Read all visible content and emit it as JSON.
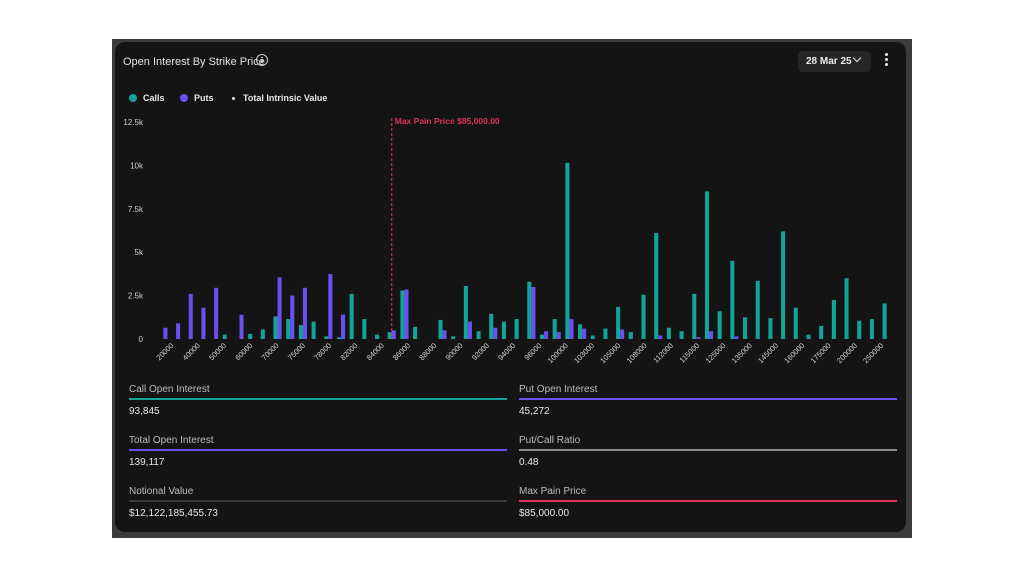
{
  "header": {
    "title": "Open Interest By Strike Price",
    "date_selected": "28 Mar 25"
  },
  "legend": {
    "calls": "Calls",
    "puts": "Puts",
    "intrinsic": "Total Intrinsic Value"
  },
  "colors": {
    "calls": "#12a498",
    "puts": "#6b4ff0",
    "max_pain": "#e0325a",
    "neutral_line": "#8a8a8a",
    "dark_line": "#3a3a3a"
  },
  "chart_data": {
    "type": "bar",
    "ylim": [
      0,
      12500
    ],
    "yticks": [
      0,
      2500,
      5000,
      7500,
      10000,
      12500
    ],
    "ytick_labels": [
      "0",
      "2.5k",
      "5k",
      "7.5k",
      "10k",
      "12.5k"
    ],
    "x_labels_shown": [
      "20000",
      "40000",
      "50000",
      "60000",
      "70000",
      "75000",
      "78000",
      "82000",
      "84000",
      "86000",
      "88000",
      "90000",
      "92000",
      "94000",
      "96000",
      "100000",
      "103000",
      "105000",
      "108000",
      "112000",
      "115000",
      "125000",
      "135000",
      "145000",
      "160000",
      "175000",
      "200000",
      "250000"
    ],
    "max_pain_label": "Max Pain Price $85,000.00",
    "max_pain_index": 18,
    "series": [
      {
        "name": "Calls",
        "values": [
          0,
          0,
          0,
          0,
          0,
          250,
          0,
          300,
          550,
          1300,
          1150,
          800,
          1000,
          150,
          100,
          2600,
          1150,
          250,
          400,
          2800,
          700,
          0,
          1100,
          150,
          3050,
          450,
          1450,
          1000,
          1150,
          3300,
          250,
          1150,
          10150,
          850,
          200,
          600,
          1850,
          400,
          2550,
          6100,
          650,
          450,
          2600,
          8500,
          1600,
          4500,
          1250,
          3350,
          1200,
          6200,
          1800,
          250,
          750,
          2250,
          3500,
          1050,
          1150,
          2050
        ]
      },
      {
        "name": "Puts",
        "values": [
          650,
          900,
          2600,
          1800,
          2950,
          0,
          1400,
          0,
          0,
          3550,
          2500,
          2950,
          0,
          3750,
          1400,
          0,
          0,
          0,
          500,
          2850,
          0,
          0,
          500,
          0,
          1000,
          0,
          650,
          0,
          0,
          3000,
          450,
          400,
          1150,
          600,
          0,
          0,
          550,
          0,
          0,
          200,
          0,
          0,
          100,
          450,
          0,
          150,
          0,
          0,
          0,
          0,
          0,
          0,
          0,
          0,
          0,
          0,
          0,
          0
        ]
      }
    ]
  },
  "stats": [
    {
      "label": "Call Open Interest",
      "value": "93,845",
      "color": "#12a498"
    },
    {
      "label": "Put Open Interest",
      "value": "45,272",
      "color": "#6b4ff0"
    },
    {
      "label": "Total Open Interest",
      "value": "139,117",
      "color": "#6b4ff0"
    },
    {
      "label": "Put/Call Ratio",
      "value": "0.48",
      "color": "#8a8a8a"
    },
    {
      "label": "Notional Value",
      "value": "$12,122,185,455.73",
      "color": "#3a3a3a"
    },
    {
      "label": "Max Pain Price",
      "value": "$85,000.00",
      "color": "#e0325a"
    }
  ]
}
